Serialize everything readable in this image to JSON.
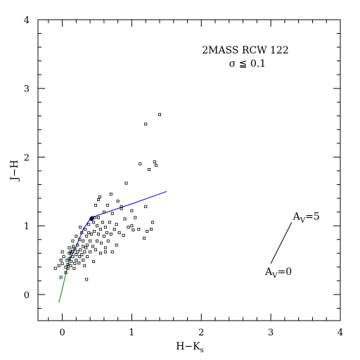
{
  "chart_data": {
    "type": "scatter",
    "title_lines": [
      "2MASS RCW 122",
      "σ ≦ 0.1"
    ],
    "xlabel": "H−K",
    "xlabel_sub": "s",
    "ylabel": "J−H",
    "xlim": [
      -0.35,
      4.0
    ],
    "ylim": [
      -0.38,
      4.0
    ],
    "xticks": [
      0,
      1,
      2,
      3,
      4
    ],
    "yticks": [
      0,
      1,
      2,
      3,
      4
    ],
    "grid": false,
    "colors": {
      "frame": "#000000",
      "ms_locus": "#008000",
      "giant_branch": "#0000cc",
      "points": "#000000"
    },
    "main_sequence_locus": {
      "x": [
        -0.05,
        0.0,
        0.05,
        0.1,
        0.15
      ],
      "y": [
        -0.12,
        0.08,
        0.3,
        0.5,
        0.72
      ]
    },
    "giant_branch": {
      "x": [
        0.1,
        0.2,
        0.3,
        0.4,
        0.5,
        1.0,
        1.5
      ],
      "y": [
        0.5,
        0.7,
        0.95,
        1.1,
        1.15,
        1.32,
        1.5
      ]
    },
    "giant_branch_end": {
      "x": 0.42,
      "y": 1.1
    },
    "reddening_vector": {
      "start": {
        "x": 3.0,
        "y": 0.45
      },
      "end": {
        "x": 3.3,
        "y": 1.05
      },
      "start_label": "A",
      "start_label_sub": "V",
      "start_label_value": "=0",
      "end_label": "A",
      "end_label_sub": "V",
      "end_label_value": "=5"
    },
    "points": [
      [
        -0.1,
        0.38
      ],
      [
        -0.05,
        0.42
      ],
      [
        -0.02,
        0.5
      ],
      [
        0.0,
        0.45
      ],
      [
        0.02,
        0.55
      ],
      [
        0.05,
        0.4
      ],
      [
        0.07,
        0.5
      ],
      [
        0.08,
        0.44
      ],
      [
        0.1,
        0.52
      ],
      [
        0.1,
        0.6
      ],
      [
        0.12,
        0.42
      ],
      [
        0.13,
        0.48
      ],
      [
        0.15,
        0.55
      ],
      [
        0.15,
        0.62
      ],
      [
        0.16,
        0.7
      ],
      [
        0.17,
        0.38
      ],
      [
        0.18,
        0.45
      ],
      [
        0.18,
        0.66
      ],
      [
        0.2,
        0.5
      ],
      [
        0.2,
        0.58
      ],
      [
        0.22,
        0.62
      ],
      [
        0.22,
        0.72
      ],
      [
        0.24,
        0.46
      ],
      [
        0.25,
        0.55
      ],
      [
        0.25,
        0.8
      ],
      [
        0.26,
        0.65
      ],
      [
        0.28,
        0.58
      ],
      [
        0.28,
        0.9
      ],
      [
        0.3,
        0.5
      ],
      [
        0.3,
        0.7
      ],
      [
        0.3,
        0.78
      ],
      [
        0.32,
        0.62
      ],
      [
        0.33,
        0.95
      ],
      [
        0.34,
        0.68
      ],
      [
        0.35,
        0.85
      ],
      [
        0.36,
        0.55
      ],
      [
        0.36,
        0.72
      ],
      [
        0.38,
        0.9
      ],
      [
        0.38,
        1.02
      ],
      [
        0.4,
        0.62
      ],
      [
        0.4,
        0.78
      ],
      [
        0.42,
        0.88
      ],
      [
        0.42,
        1.1
      ],
      [
        0.43,
        1.12
      ],
      [
        0.44,
        0.7
      ],
      [
        0.45,
        1.05
      ],
      [
        0.46,
        0.92
      ],
      [
        0.47,
        1.12
      ],
      [
        0.48,
        0.65
      ],
      [
        0.48,
        1.3
      ],
      [
        0.5,
        0.78
      ],
      [
        0.5,
        1.0
      ],
      [
        0.52,
        0.88
      ],
      [
        0.52,
        1.12
      ],
      [
        0.54,
        1.42
      ],
      [
        0.55,
        0.6
      ],
      [
        0.55,
        0.95
      ],
      [
        0.56,
        0.75
      ],
      [
        0.58,
        1.05
      ],
      [
        0.6,
        0.85
      ],
      [
        0.6,
        1.2
      ],
      [
        0.62,
        0.68
      ],
      [
        0.62,
        0.98
      ],
      [
        0.64,
        0.9
      ],
      [
        0.65,
        1.3
      ],
      [
        0.66,
        0.78
      ],
      [
        0.68,
        1.05
      ],
      [
        0.7,
        0.88
      ],
      [
        0.72,
        1.18
      ],
      [
        0.72,
        0.62
      ],
      [
        0.75,
        0.95
      ],
      [
        0.78,
        1.02
      ],
      [
        0.8,
        1.36
      ],
      [
        0.82,
        0.9
      ],
      [
        0.85,
        1.25
      ],
      [
        0.88,
        0.86
      ],
      [
        0.9,
        1.1
      ],
      [
        0.92,
        1.62
      ],
      [
        0.95,
        0.98
      ],
      [
        1.0,
        1.22
      ],
      [
        1.02,
        0.94
      ],
      [
        1.05,
        1.12
      ],
      [
        1.1,
        0.95
      ],
      [
        1.12,
        1.9
      ],
      [
        1.18,
        0.82
      ],
      [
        1.2,
        1.28
      ],
      [
        1.22,
        0.92
      ],
      [
        1.25,
        1.82
      ],
      [
        1.28,
        0.95
      ],
      [
        1.3,
        1.05
      ],
      [
        1.33,
        1.93
      ],
      [
        1.35,
        1.88
      ],
      [
        1.4,
        2.62
      ],
      [
        1.2,
        2.48
      ],
      [
        -0.02,
        0.25
      ],
      [
        0.05,
        0.32
      ],
      [
        0.0,
        0.62
      ],
      [
        0.08,
        0.38
      ],
      [
        0.1,
        0.68
      ],
      [
        0.15,
        0.78
      ],
      [
        0.2,
        0.85
      ],
      [
        0.26,
        0.98
      ],
      [
        0.32,
        0.42
      ],
      [
        0.35,
        0.22
      ],
      [
        0.45,
        0.48
      ],
      [
        0.62,
        0.62
      ],
      [
        0.7,
        1.46
      ],
      [
        0.85,
        1.28
      ],
      [
        1.0,
        1.0
      ],
      [
        0.78,
        0.72
      ],
      [
        0.52,
        1.38
      ],
      [
        0.12,
        0.62
      ]
    ]
  }
}
